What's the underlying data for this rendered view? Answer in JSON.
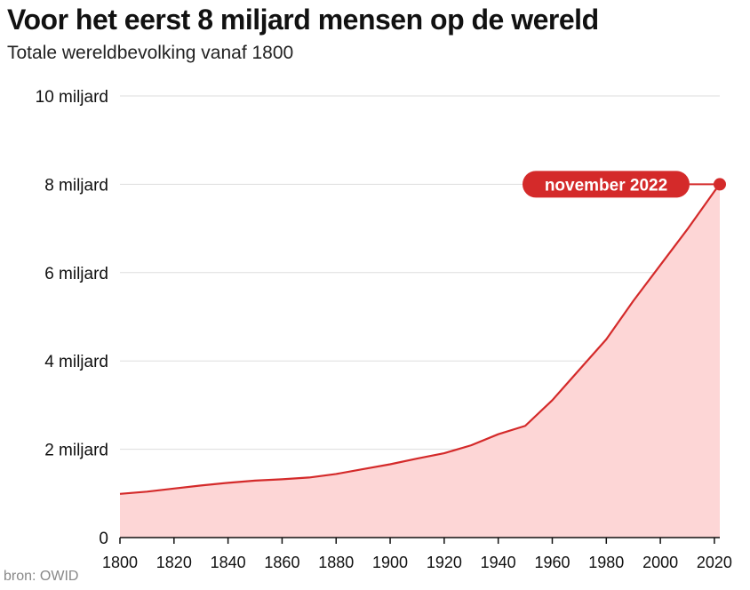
{
  "header": {
    "title": "Voor het eerst 8 miljard mensen op de wereld",
    "subtitle": "Totale wereldbevolking vanaf 1800"
  },
  "footer": {
    "source": "bron: OWID"
  },
  "colors": {
    "line": "#d42a2a",
    "area": "#fdd6d6",
    "annotation_bg": "#d42a2a",
    "grid": "#dddddd"
  },
  "chart_data": {
    "type": "area",
    "title": "Voor het eerst 8 miljard mensen op de wereld",
    "subtitle": "Totale wereldbevolking vanaf 1800",
    "xlabel": "",
    "ylabel": "",
    "xlim": [
      1800,
      2022
    ],
    "ylim": [
      0,
      10
    ],
    "grid": true,
    "x_ticks": [
      1800,
      1820,
      1840,
      1860,
      1880,
      1900,
      1920,
      1940,
      1960,
      1980,
      2000,
      2020
    ],
    "x_tick_labels": [
      "1800",
      "1820",
      "1840",
      "1860",
      "1880",
      "1900",
      "1920",
      "1940",
      "1960",
      "1980",
      "2000",
      "2020"
    ],
    "y_ticks": [
      0,
      2,
      4,
      6,
      8,
      10
    ],
    "y_tick_labels": [
      "0",
      "2 miljard",
      "4 miljard",
      "6 miljard",
      "8 miljard",
      "10 miljard"
    ],
    "series": [
      {
        "x": [
          1800,
          1810,
          1820,
          1830,
          1840,
          1850,
          1860,
          1870,
          1880,
          1890,
          1900,
          1910,
          1920,
          1930,
          1940,
          1950,
          1960,
          1970,
          1980,
          1990,
          2000,
          2010,
          2020,
          2022
        ],
        "values": [
          0.99,
          1.04,
          1.11,
          1.18,
          1.24,
          1.29,
          1.32,
          1.36,
          1.44,
          1.55,
          1.66,
          1.79,
          1.91,
          2.09,
          2.34,
          2.53,
          3.11,
          3.8,
          4.49,
          5.36,
          6.17,
          6.98,
          7.84,
          8.0
        ]
      }
    ],
    "annotations": [
      {
        "x": 2022,
        "y": 8.0,
        "text": "november 2022"
      }
    ]
  }
}
